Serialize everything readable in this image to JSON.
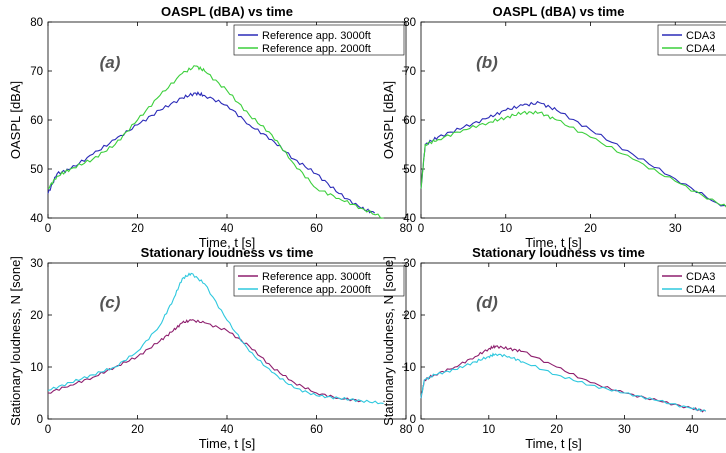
{
  "chart_data": [
    {
      "type": "line",
      "title": "OASPL (dBA) vs time",
      "panel_label": "(a)",
      "xlabel": "Time, t [s]",
      "ylabel": "OASPL [dBA]",
      "xlim": [
        0,
        80
      ],
      "ylim": [
        40,
        80
      ],
      "xticks": [
        0,
        20,
        40,
        60,
        80
      ],
      "yticks": [
        40,
        50,
        60,
        70,
        80
      ],
      "legend_position": "top-right",
      "series": [
        {
          "name": "Reference app. 3000ft",
          "color": "#2b2bb8",
          "x": [
            0,
            2,
            5,
            10,
            15,
            20,
            25,
            30,
            33,
            35,
            40,
            45,
            50,
            55,
            60,
            65,
            70,
            73
          ],
          "y": [
            45,
            49,
            50,
            53,
            56,
            59,
            62,
            64.5,
            65.5,
            65,
            63,
            59,
            56,
            52,
            49,
            45,
            42,
            41
          ]
        },
        {
          "name": "Reference app. 2000ft",
          "color": "#3ccf3c",
          "x": [
            0,
            2,
            5,
            10,
            15,
            20,
            25,
            30,
            33,
            35,
            40,
            45,
            50,
            55,
            60,
            65,
            70,
            75
          ],
          "y": [
            46,
            48.5,
            50,
            52,
            55,
            60,
            65,
            69.5,
            71,
            70,
            66,
            61,
            57,
            51,
            46,
            44,
            42,
            40
          ]
        }
      ]
    },
    {
      "type": "line",
      "title": "OASPL (dBA) vs time",
      "panel_label": "(b)",
      "xlabel": "Time, t [s]",
      "ylabel": "OASPL [dBA]",
      "xlim": [
        0,
        40
      ],
      "ylim": [
        40,
        80
      ],
      "xticks": [
        0,
        10,
        20,
        30,
        40
      ],
      "yticks": [
        40,
        50,
        60,
        70,
        80
      ],
      "legend_position": "top-right",
      "series": [
        {
          "name": "CDA3",
          "color": "#2b2bb8",
          "x": [
            0,
            0.5,
            2,
            5,
            8,
            10,
            12,
            14,
            16,
            20,
            25,
            30,
            35,
            38,
            40
          ],
          "y": [
            46,
            55,
            56.5,
            58.5,
            60.5,
            62,
            63,
            63.5,
            62,
            58,
            53,
            48,
            43,
            41,
            40
          ]
        },
        {
          "name": "CDA4",
          "color": "#3ccf3c",
          "x": [
            0,
            0.5,
            2,
            5,
            8,
            10,
            12,
            14,
            16,
            20,
            25,
            30,
            35,
            38,
            40
          ],
          "y": [
            46,
            55,
            56,
            58,
            59.5,
            60.5,
            61.5,
            61.5,
            60,
            56.5,
            52,
            47.5,
            43,
            41,
            40
          ]
        }
      ]
    },
    {
      "type": "line",
      "title": "Stationary loudness vs time",
      "panel_label": "(c)",
      "xlabel": "Time, t [s]",
      "ylabel": "Stationary loudness, N [sone]",
      "xlim": [
        0,
        80
      ],
      "ylim": [
        0,
        30
      ],
      "xticks": [
        0,
        20,
        40,
        60,
        80
      ],
      "yticks": [
        0,
        10,
        20,
        30
      ],
      "legend_position": "top-right",
      "series": [
        {
          "name": "Reference app. 3000ft",
          "color": "#8e1f6e",
          "x": [
            0,
            5,
            10,
            15,
            20,
            25,
            28,
            30,
            32,
            35,
            40,
            45,
            50,
            55,
            60,
            65,
            70
          ],
          "y": [
            5,
            6.5,
            8,
            10,
            12,
            15,
            17,
            18.5,
            19,
            18.5,
            17,
            14,
            10,
            7,
            5,
            4,
            3.5
          ]
        },
        {
          "name": "Reference app. 2000ft",
          "color": "#2ec8de",
          "x": [
            0,
            5,
            10,
            15,
            20,
            25,
            28,
            30,
            32,
            35,
            40,
            45,
            50,
            55,
            60,
            65,
            70,
            75
          ],
          "y": [
            5.5,
            7,
            8.5,
            10,
            13,
            18,
            23,
            27,
            28,
            26,
            19,
            13,
            9,
            6,
            4.5,
            4,
            3.5,
            3
          ]
        }
      ]
    },
    {
      "type": "line",
      "title": "Stationary loudness vs time",
      "panel_label": "(d)",
      "xlabel": "Time, t [s]",
      "ylabel": "Stationary loudness, N [sone]",
      "xlim": [
        0,
        50
      ],
      "ylim": [
        0,
        30
      ],
      "xticks": [
        0,
        10,
        20,
        30,
        40,
        50
      ],
      "yticks": [
        0,
        10,
        20,
        30
      ],
      "legend_position": "top-right",
      "series": [
        {
          "name": "CDA3",
          "color": "#8e1f6e",
          "x": [
            0,
            0.5,
            2,
            5,
            8,
            10,
            11,
            13,
            15,
            20,
            25,
            30,
            35,
            40,
            42
          ],
          "y": [
            4,
            7.5,
            8.5,
            10,
            12,
            13.5,
            14,
            13.5,
            13,
            10,
            7,
            5,
            3.5,
            2,
            1.5
          ]
        },
        {
          "name": "CDA4",
          "color": "#2ec8de",
          "x": [
            0,
            0.5,
            2,
            5,
            8,
            10,
            11,
            13,
            15,
            20,
            25,
            30,
            35,
            40,
            42
          ],
          "y": [
            4,
            7.5,
            8.5,
            9.5,
            11,
            12,
            12.5,
            12,
            11,
            8.5,
            6.5,
            5,
            3.5,
            2,
            1.5
          ]
        }
      ]
    }
  ]
}
